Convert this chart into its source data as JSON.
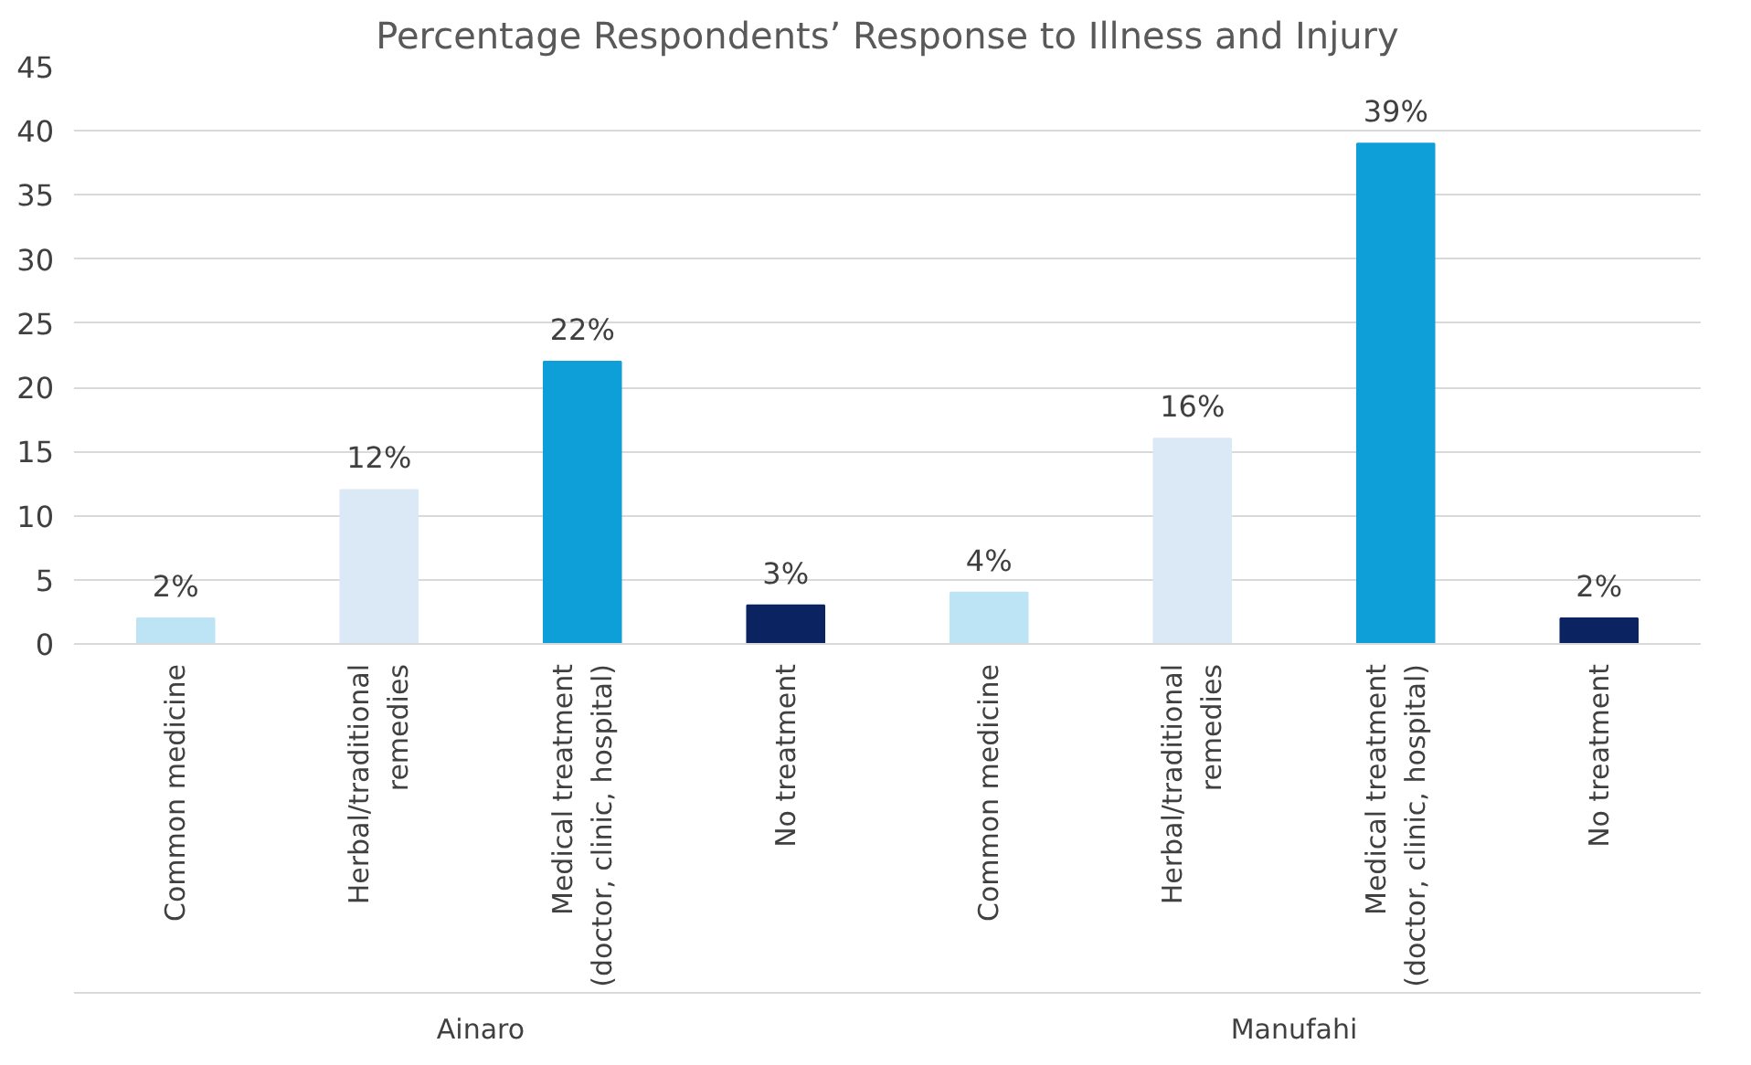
{
  "chart_data": {
    "type": "bar",
    "title": "Percentage Respondents’ Response to Illness and Injury",
    "categories": [
      "Common medicine",
      "Herbal/traditional remedies",
      "Medical treatment (doctor, clinic, hospital)",
      "No treatment",
      "Common medicine",
      "Herbal/traditional remedies",
      "Medical treatment (doctor, clinic, hospital)",
      "No treatment"
    ],
    "values": [
      2,
      12,
      22,
      3,
      4,
      16,
      39,
      2
    ],
    "colors": [
      "#bde4f4",
      "#dbe8f6",
      "#0e9fd8",
      "#0b2461",
      "#bde4f4",
      "#dbe8f6",
      "#0e9fd8",
      "#0b2461"
    ],
    "value_labels": [
      "2%",
      "12%",
      "22%",
      "3%",
      "4%",
      "16%",
      "39%",
      "2%"
    ],
    "annotations": [
      "Ainaro",
      "Manufahi"
    ],
    "ylim": [
      0,
      45
    ],
    "yticks": [
      0,
      5,
      10,
      15,
      20,
      25,
      30,
      35,
      40,
      45
    ],
    "grid": "y"
  }
}
